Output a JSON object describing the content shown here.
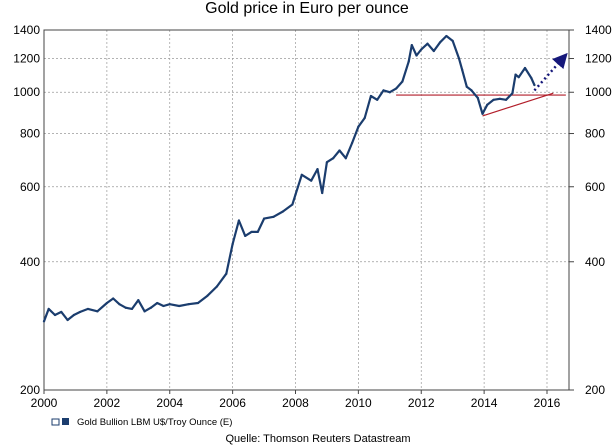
{
  "chart_data": {
    "type": "line",
    "title": "Gold price in Euro per ounce",
    "xlabel": "",
    "ylabel": "",
    "y_scale": "log",
    "xlim": [
      2000,
      2016.7
    ],
    "ylim": [
      200,
      1400
    ],
    "x_ticks": [
      2000,
      2002,
      2004,
      2006,
      2008,
      2010,
      2012,
      2014,
      2016
    ],
    "y_ticks": [
      200,
      400,
      600,
      800,
      1000,
      1200,
      1400
    ],
    "grid": true,
    "legend_position": "bottom-left",
    "source": "Quelle: Thomson Reuters Datastream",
    "series": [
      {
        "name": "Gold Bullion LBM U$/Troy Ounce (E)",
        "color": "#1b3d6e",
        "x": [
          2000.0,
          2000.15,
          2000.35,
          2000.55,
          2000.75,
          2000.95,
          2001.15,
          2001.4,
          2001.7,
          2002.0,
          2002.2,
          2002.4,
          2002.6,
          2002.8,
          2003.0,
          2003.2,
          2003.4,
          2003.6,
          2003.8,
          2004.0,
          2004.3,
          2004.6,
          2004.9,
          2005.2,
          2005.5,
          2005.8,
          2006.0,
          2006.2,
          2006.4,
          2006.6,
          2006.8,
          2007.0,
          2007.3,
          2007.6,
          2007.9,
          2008.0,
          2008.2,
          2008.5,
          2008.7,
          2008.85,
          2009.0,
          2009.2,
          2009.4,
          2009.6,
          2009.8,
          2010.0,
          2010.2,
          2010.4,
          2010.6,
          2010.8,
          2011.0,
          2011.2,
          2011.4,
          2011.6,
          2011.7,
          2011.85,
          2012.0,
          2012.2,
          2012.4,
          2012.6,
          2012.8,
          2013.0,
          2013.2,
          2013.3,
          2013.45,
          2013.6,
          2013.8,
          2013.95,
          2014.1,
          2014.3,
          2014.5,
          2014.7,
          2014.9,
          2015.0,
          2015.1,
          2015.3,
          2015.5,
          2015.6
        ],
        "values": [
          290,
          310,
          300,
          305,
          292,
          300,
          305,
          310,
          306,
          320,
          328,
          318,
          312,
          310,
          325,
          306,
          312,
          320,
          315,
          318,
          315,
          318,
          320,
          333,
          350,
          375,
          440,
          500,
          460,
          470,
          470,
          505,
          510,
          525,
          545,
          575,
          640,
          620,
          660,
          580,
          685,
          700,
          730,
          700,
          760,
          830,
          870,
          980,
          960,
          1010,
          1000,
          1020,
          1060,
          1180,
          1290,
          1220,
          1260,
          1300,
          1250,
          1310,
          1355,
          1320,
          1200,
          1130,
          1030,
          1010,
          970,
          890,
          935,
          960,
          965,
          960,
          995,
          1100,
          1085,
          1140,
          1080,
          1040
        ]
      }
    ],
    "annotations": [
      {
        "type": "horizontal-resistance",
        "y": 985,
        "x_start": 2011.2,
        "x_end": 2016.6,
        "color": "#b21e2a"
      },
      {
        "type": "support-trendline",
        "x1": 2013.95,
        "y1": 880,
        "x2": 2016.2,
        "y2": 995,
        "color": "#b21e2a"
      },
      {
        "type": "projection-arrow",
        "x1": 2015.6,
        "y1": 1010,
        "x2": 2016.5,
        "y2": 1200,
        "color": "#16187a"
      }
    ]
  }
}
